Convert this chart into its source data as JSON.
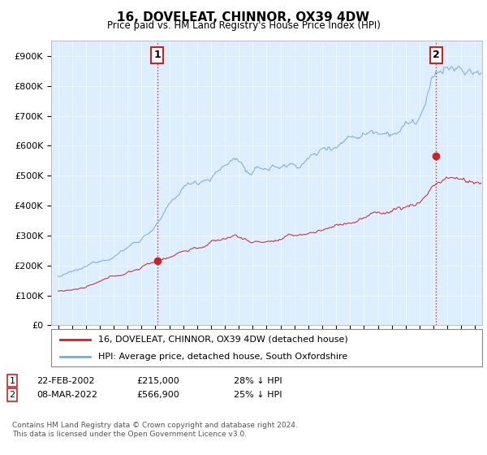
{
  "title": "16, DOVELEAT, CHINNOR, OX39 4DW",
  "subtitle": "Price paid vs. HM Land Registry's House Price Index (HPI)",
  "ylabel_ticks": [
    "£0",
    "£100K",
    "£200K",
    "£300K",
    "£400K",
    "£500K",
    "£600K",
    "£700K",
    "£800K",
    "£900K"
  ],
  "ytick_values": [
    0,
    100000,
    200000,
    300000,
    400000,
    500000,
    600000,
    700000,
    800000,
    900000
  ],
  "ylim": [
    0,
    950000
  ],
  "xlim_start": 1994.5,
  "xlim_end": 2025.5,
  "hpi_color": "#7aabdb",
  "price_color": "#cc2222",
  "bg_color": "#ddeeff",
  "transaction1_x": 2002.13,
  "transaction1_y": 215000,
  "transaction2_x": 2022.18,
  "transaction2_y": 566900,
  "legend_label1": "16, DOVELEAT, CHINNOR, OX39 4DW (detached house)",
  "legend_label2": "HPI: Average price, detached house, South Oxfordshire",
  "annotation1_label": "1",
  "annotation2_label": "2",
  "footer1": "Contains HM Land Registry data © Crown copyright and database right 2024.",
  "footer2": "This data is licensed under the Open Government Licence v3.0."
}
